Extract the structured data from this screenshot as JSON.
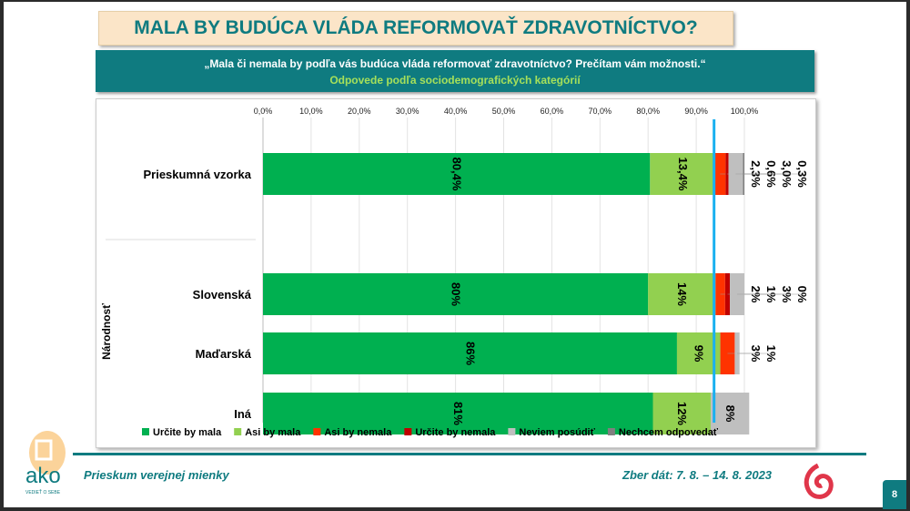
{
  "title": "MALA BY BUDÚCA VLÁDA REFORMOVAŤ ZDRAVOTNÍCTVO?",
  "subtitle_question": "„Mala či nemala by podľa vás budúca vláda reformovať zdravotníctvo? Prečítam vám možnosti.“",
  "subtitle_note": "Odpovede podľa sociodemografických kategórií",
  "footer": {
    "left": "Prieskum verejnej mienky",
    "right": "Zber dát: 7. 8. – 14. 8. 2023",
    "page": "8",
    "logo_text": "ako",
    "logo_tagline": "VEDIEŤ O SEBE"
  },
  "chart_data": {
    "type": "bar",
    "orientation": "horizontal",
    "stacked": true,
    "xlim": [
      0,
      100
    ],
    "xticks": [
      "0,0%",
      "10,0%",
      "20,0%",
      "30,0%",
      "40,0%",
      "50,0%",
      "60,0%",
      "70,0%",
      "80,0%",
      "90,0%",
      "100,0%"
    ],
    "grid": true,
    "legend_position": "bottom",
    "group_label": "Národnosť",
    "categories": [
      "Prieskumná vzorka",
      "Slovenská",
      "Maďarská",
      "Iná"
    ],
    "series": [
      {
        "name": "Určite by mala",
        "color": "#00b050",
        "values": [
          80.4,
          80,
          86,
          81
        ],
        "labels": [
          "80,4%",
          "80%",
          "86%",
          "81%"
        ]
      },
      {
        "name": "Asi by mala",
        "color": "#92d050",
        "values": [
          13.4,
          14,
          9,
          12
        ],
        "labels": [
          "13,4%",
          "14%",
          "9%",
          "12%"
        ]
      },
      {
        "name": "Asi by nemala",
        "color": "#ff3300",
        "values": [
          2.3,
          2,
          3,
          0
        ],
        "labels": [
          "2,3%",
          "2%",
          "3%",
          ""
        ]
      },
      {
        "name": "Určite by nemala",
        "color": "#c00000",
        "values": [
          0.6,
          1,
          0,
          0
        ],
        "labels": [
          "0,6%",
          "1%",
          "",
          ""
        ]
      },
      {
        "name": "Neviem posúdiť",
        "color": "#bfbfbf",
        "values": [
          3.0,
          3,
          1,
          8
        ],
        "labels": [
          "3,0%",
          "3%",
          "1%",
          "8%"
        ]
      },
      {
        "name": "Nechcem odpovedať",
        "color": "#808080",
        "values": [
          0.3,
          0,
          0,
          0
        ],
        "labels": [
          "0,3%",
          "0%",
          "",
          ""
        ]
      }
    ],
    "reference_line": {
      "value": 93.7,
      "color": "#1ab0f0"
    }
  }
}
